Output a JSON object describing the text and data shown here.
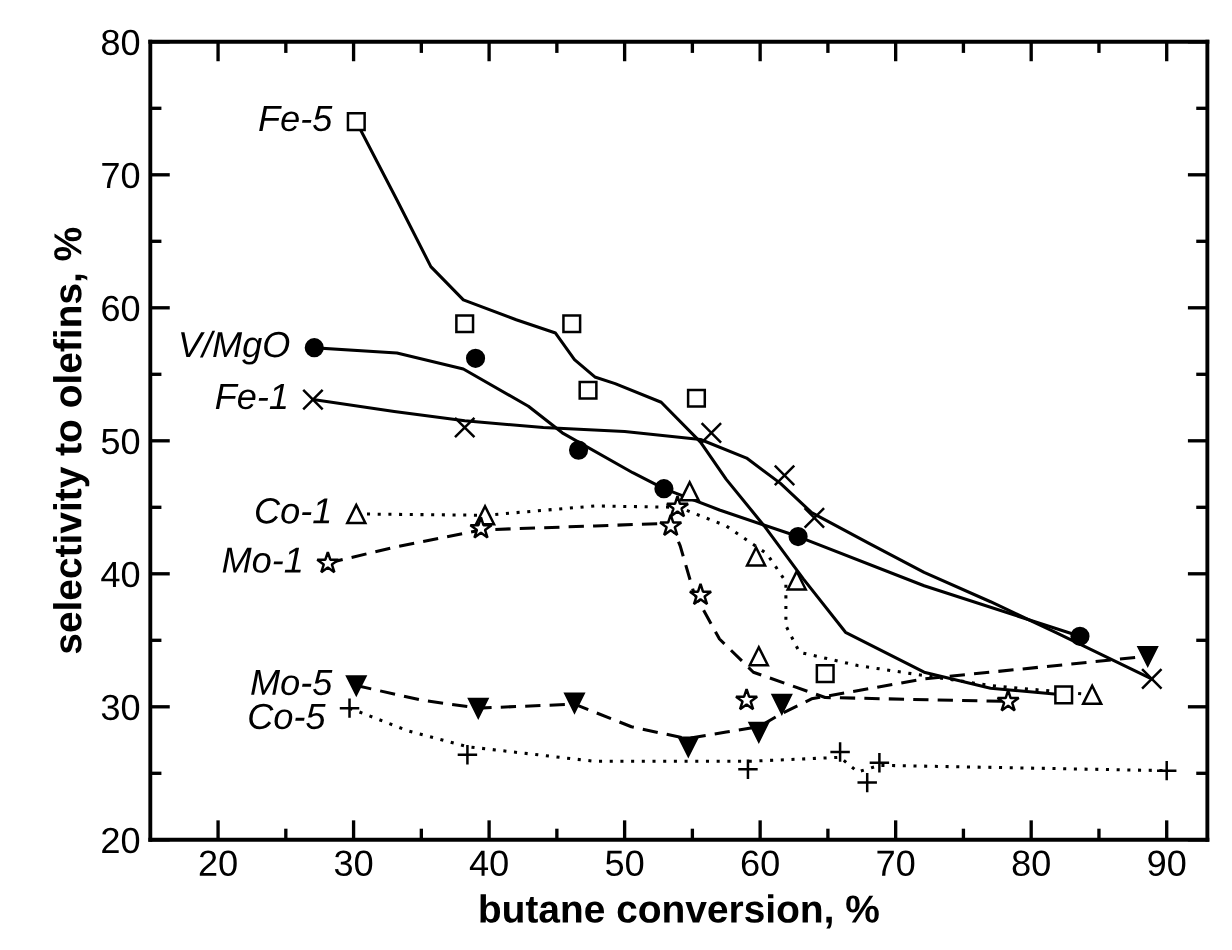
{
  "chart_data": {
    "type": "scatter",
    "xlabel": "butane conversion, %",
    "ylabel": "selectivity to olefins, %",
    "xlim": [
      15,
      93
    ],
    "ylim": [
      20,
      80
    ],
    "xticks": [
      20,
      30,
      40,
      50,
      60,
      70,
      80,
      90
    ],
    "yticks": [
      20,
      30,
      40,
      50,
      60,
      70,
      80
    ],
    "grid": false,
    "series": [
      {
        "name": "Fe-5",
        "color": "#000000",
        "marker": "square",
        "x": [
          30.2,
          38.2,
          46.1,
          47.3,
          55.3,
          64.8,
          82.4
        ],
        "values": [
          74,
          58.8,
          58.8,
          53.8,
          53.2,
          32.5,
          30.9
        ]
      },
      {
        "name": "V/MgO",
        "color": "#000000",
        "marker": "circle",
        "x": [
          27.1,
          39.0,
          46.6,
          52.9,
          62.8,
          83.6
        ],
        "values": [
          57.0,
          56.2,
          49.3,
          46.4,
          42.8,
          35.3
        ]
      },
      {
        "name": "Fe-1",
        "color": "#000000",
        "marker": "cross",
        "x": [
          27.0,
          38.2,
          56.4,
          61.8,
          64.0,
          88.9
        ],
        "values": [
          53.1,
          51.0,
          50.6,
          47.4,
          44.2,
          32.1
        ]
      },
      {
        "name": "Co-1",
        "color": "#000000",
        "marker": "triangle",
        "x": [
          30.2,
          39.7,
          54.8,
          59.7,
          62.7,
          59.9,
          84.5
        ],
        "values": [
          44.5,
          44.4,
          46.2,
          41.3,
          39.5,
          33.8,
          30.9
        ]
      },
      {
        "name": "Mo-1",
        "color": "#000000",
        "marker": "star",
        "x": [
          28.1,
          39.4,
          53.4,
          53.9,
          55.6,
          59.0,
          78.3
        ],
        "values": [
          40.8,
          43.4,
          43.6,
          45.0,
          38.4,
          30.5,
          30.4
        ]
      },
      {
        "name": "Mo-5",
        "color": "#000000",
        "marker": "triangle_down",
        "x": [
          30.2,
          39.2,
          46.3,
          54.7,
          59.9,
          61.6,
          88.6
        ],
        "values": [
          31.6,
          29.9,
          30.3,
          27.0,
          28.1,
          30.2,
          33.8
        ]
      },
      {
        "name": "Co-5",
        "color": "#000000",
        "marker": "plus",
        "x": [
          29.7,
          38.4,
          59.1,
          65.9,
          67.9,
          68.8,
          90.0
        ],
        "values": [
          29.9,
          26.4,
          25.3,
          26.6,
          24.3,
          25.8,
          25.2
        ]
      },
      {
        "type": "line",
        "color": "#000000",
        "line_style": "solid",
        "marker": "none",
        "x": [
          30.2,
          33.2,
          35.7,
          38.1,
          42.0,
          44.9,
          46.3,
          47.8,
          49.3,
          52.7,
          55.6,
          57.5,
          60.3,
          63.2,
          66.3,
          72.1,
          77.0,
          82.4
        ],
        "values": [
          74,
          68.1,
          63.1,
          60.6,
          59.1,
          58.1,
          56.1,
          54.8,
          54.3,
          52.9,
          49.9,
          47.1,
          43.6,
          39.6,
          35.6,
          32.6,
          31.4,
          30.9
        ]
      },
      {
        "type": "line",
        "color": "#000000",
        "line_style": "solid",
        "marker": "none",
        "x": [
          27.1,
          33.2,
          38.1,
          42.9,
          45.4,
          50.6,
          52.9,
          57.0,
          62.8,
          72.1,
          83.6
        ],
        "values": [
          57.0,
          56.6,
          55.4,
          52.6,
          50.6,
          47.6,
          46.4,
          44.8,
          42.8,
          39.1,
          35.3
        ]
      },
      {
        "type": "line",
        "color": "#000000",
        "line_style": "solid",
        "marker": "none",
        "x": [
          27.0,
          33.0,
          38.2,
          44.0,
          50.0,
          55.6,
          59.0,
          61.5,
          63.8,
          68.0,
          72.1,
          77.0,
          81.8,
          88.9
        ],
        "values": [
          53.1,
          52.2,
          51.5,
          51.0,
          50.7,
          50.1,
          48.7,
          46.8,
          44.6,
          42.3,
          40.1,
          37.9,
          35.6,
          32.1
        ]
      },
      {
        "type": "line",
        "color": "#000000",
        "line_style": "dotted",
        "marker": "none",
        "x": [
          30.2,
          39.7,
          47.8,
          54.0,
          57.5,
          60.5,
          61.9,
          61.9,
          62.9,
          67.2,
          77.0,
          84.5
        ],
        "values": [
          44.5,
          44.4,
          45.1,
          45.0,
          43.6,
          41.5,
          39.4,
          36.1,
          34.1,
          33.1,
          31.6,
          30.9
        ]
      },
      {
        "type": "line",
        "color": "#000000",
        "line_style": "dashed",
        "marker": "none",
        "x": [
          28.1,
          33.0,
          39.4,
          47.8,
          53.4,
          54.1,
          55.1,
          57.0,
          59.5,
          64.8,
          78.3
        ],
        "values": [
          40.8,
          42.0,
          43.3,
          43.6,
          43.8,
          42.1,
          38.6,
          35.1,
          32.6,
          30.7,
          30.4
        ]
      },
      {
        "type": "line",
        "color": "#000000",
        "line_style": "dashed",
        "marker": "none",
        "x": [
          30.2,
          35.0,
          39.2,
          46.3,
          50.5,
          54.6,
          57.5,
          59.9,
          61.6,
          63.8,
          72.1,
          88.6
        ],
        "values": [
          31.6,
          30.5,
          29.9,
          30.2,
          28.5,
          27.6,
          28.1,
          28.5,
          29.5,
          30.6,
          32.1,
          33.8
        ]
      },
      {
        "type": "line",
        "color": "#000000",
        "line_style": "dotted",
        "marker": "none",
        "x": [
          29.7,
          34.0,
          38.4,
          47.8,
          59.1,
          65.9,
          67.2,
          68.8,
          90.0
        ],
        "values": [
          29.9,
          28.2,
          27.0,
          25.9,
          25.9,
          26.2,
          25.1,
          25.6,
          25.2
        ]
      }
    ]
  }
}
